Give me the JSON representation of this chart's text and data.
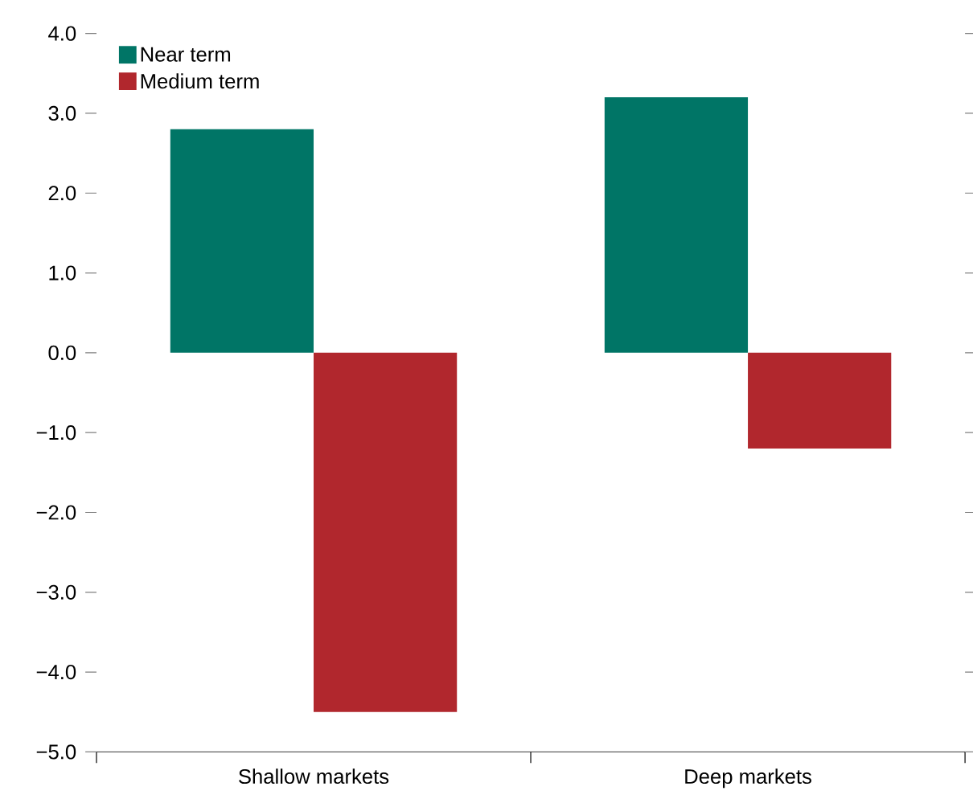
{
  "chart_data": {
    "type": "bar",
    "categories": [
      "Shallow markets",
      "Deep markets"
    ],
    "series": [
      {
        "name": "Near term",
        "color": "#007566",
        "values": [
          2.8,
          3.2
        ]
      },
      {
        "name": "Medium term",
        "color": "#b1272d",
        "values": [
          -4.5,
          -1.2
        ]
      }
    ],
    "ylim": [
      -5,
      4
    ],
    "yticks": [
      {
        "value": 4,
        "label": "4.0"
      },
      {
        "value": 3,
        "label": "3.0"
      },
      {
        "value": 2,
        "label": "2.0"
      },
      {
        "value": 1,
        "label": "1.0"
      },
      {
        "value": 0,
        "label": "0.0"
      },
      {
        "value": -1,
        "label": "−1.0"
      },
      {
        "value": -2,
        "label": "−2.0"
      },
      {
        "value": -3,
        "label": "−3.0"
      },
      {
        "value": -4,
        "label": "−4.0"
      },
      {
        "value": -5,
        "label": "−5.0"
      }
    ],
    "grid": false,
    "legend": "top left"
  }
}
